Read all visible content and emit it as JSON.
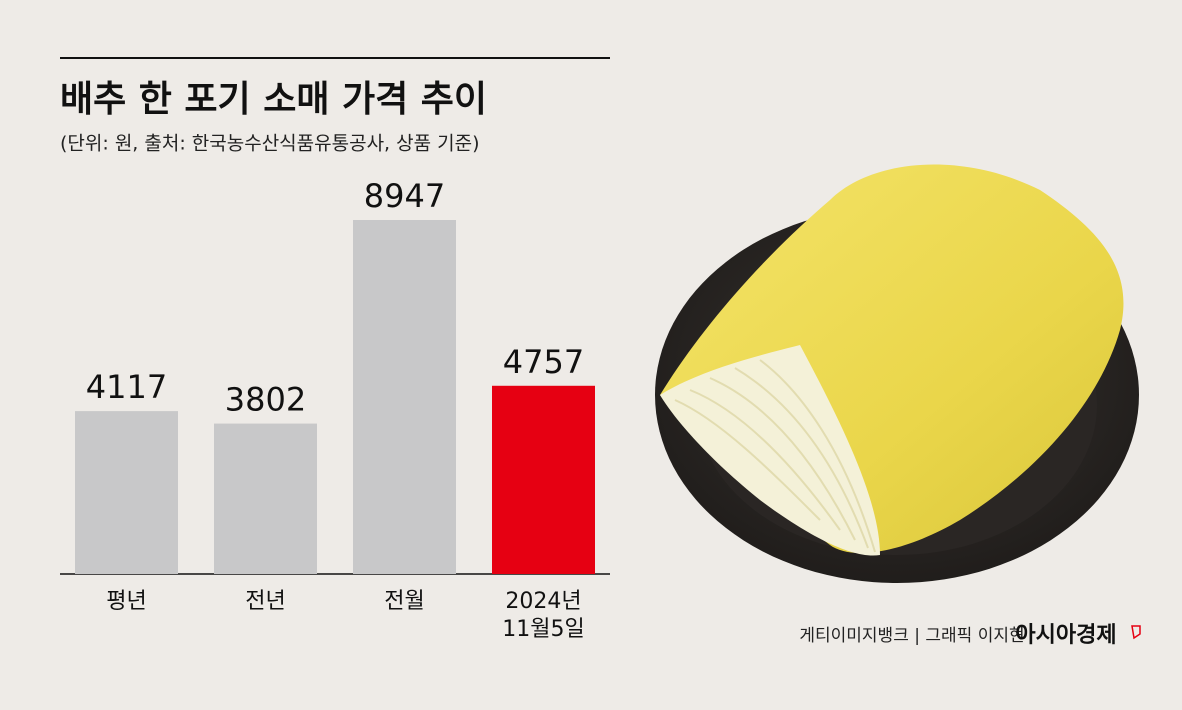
{
  "chart_data": {
    "type": "bar",
    "title": "배추 한 포기 소매 가격 추이",
    "subtitle": "(단위: 원, 출처: 한국농수산식품유통공사, 상품 기준)",
    "categories": [
      "평년",
      "전년",
      "전월",
      "2024년\n11월5일"
    ],
    "values": [
      4117,
      3802,
      8947,
      4757
    ],
    "colors": [
      "#c8c8c9",
      "#c8c8c9",
      "#c8c8c9",
      "#e60012"
    ],
    "credit": "게티이미지뱅크 | 그래픽 이지현",
    "brand": "아시아경제"
  }
}
